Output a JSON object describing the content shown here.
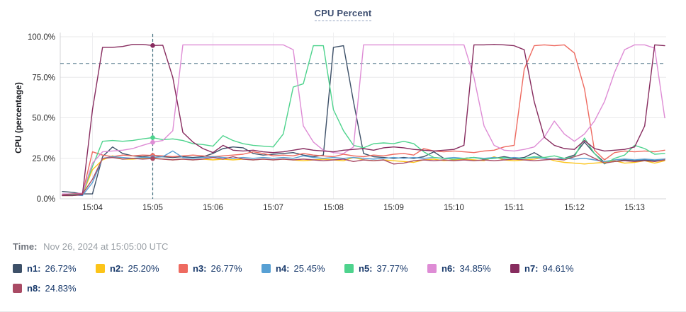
{
  "chart_data": {
    "type": "line",
    "title": "CPU Percent",
    "xlabel": "",
    "ylabel": "CPU (percentage)",
    "ylim": [
      0,
      100
    ],
    "grid": true,
    "legend_position": "bottom",
    "y_ticks": [
      "100.0%",
      "75.0%",
      "50.0%",
      "25.0%",
      "0.0%"
    ],
    "y_tick_values": [
      100,
      75,
      50,
      25,
      0
    ],
    "x_ticks": [
      "15:04",
      "15:05",
      "15:06",
      "15:07",
      "15:08",
      "15:09",
      "15:10",
      "15:11",
      "15:12",
      "15:13"
    ],
    "x_start": "15:03:30",
    "x_end": "15:13:30",
    "interval_seconds": 10,
    "threshold_pct": 83.5,
    "crosshair": {
      "index": 9,
      "time": "15:05:00"
    },
    "colors": {
      "threshold": "#54788c",
      "crosshair": "#3f6d7d",
      "grid": "#e8e8ea",
      "axis": "#d4d4d7",
      "tick_text": "#2d2d2d"
    },
    "series": [
      {
        "name": "n1",
        "color": "#3d5068",
        "legend_value": "26.72%",
        "values": [
          4.5,
          4,
          3,
          3,
          26,
          32,
          28,
          26.5,
          26,
          26.72,
          26,
          25.5,
          26,
          25.5,
          26,
          28,
          31,
          32,
          31.5,
          28,
          27,
          27.5,
          28,
          28.5,
          27,
          26,
          27,
          93.5,
          94.5,
          60,
          28,
          26,
          25.5,
          25,
          25.5,
          25,
          26,
          29,
          25,
          24.5,
          25,
          25.5,
          24.5,
          25,
          26,
          25,
          25.5,
          28.5,
          25,
          24.5,
          25,
          27,
          35,
          28,
          22.5,
          23,
          24,
          23.5,
          24,
          23.5,
          24.5
        ]
      },
      {
        "name": "n2",
        "color": "#fcc419",
        "legend_value": "25.20%",
        "values": [
          2,
          2,
          2.5,
          18,
          24,
          26.5,
          24.5,
          24.5,
          25,
          25.2,
          24.5,
          24,
          24.5,
          24,
          24.5,
          24,
          24.5,
          24,
          24.5,
          24,
          24.5,
          24,
          24.5,
          24,
          23.5,
          24,
          24.5,
          24,
          23.5,
          25.5,
          24,
          23.5,
          24,
          23.5,
          23,
          22.5,
          24,
          24.5,
          23.5,
          24,
          24.5,
          24,
          23.5,
          26,
          24,
          23.5,
          24,
          24.5,
          25.5,
          23.5,
          22.5,
          22,
          21.5,
          22,
          22.5,
          23.5,
          22,
          22.5,
          23.5,
          22,
          23.5
        ]
      },
      {
        "name": "n3",
        "color": "#ee6a60",
        "legend_value": "26.77%",
        "values": [
          2.5,
          2.5,
          3,
          29,
          27,
          26,
          27,
          26.5,
          27,
          26.77,
          26.5,
          26,
          26.5,
          27,
          26.5,
          26,
          26.5,
          27,
          27.5,
          29,
          28,
          26.5,
          27,
          26.5,
          28,
          27,
          26.5,
          26,
          27.5,
          26.5,
          26,
          27,
          26.5,
          27.5,
          28,
          27,
          31,
          29.5,
          29,
          29.5,
          29,
          28.5,
          29.5,
          30,
          32,
          33,
          80,
          94.5,
          95,
          94.5,
          95,
          90,
          68,
          30,
          24,
          28.5,
          29.5,
          29,
          29.5,
          29,
          30
        ]
      },
      {
        "name": "n4",
        "color": "#57a0d4",
        "legend_value": "25.45%",
        "values": [
          2,
          2.5,
          2,
          10,
          25,
          26,
          25.5,
          25,
          25.5,
          25.45,
          26,
          29.5,
          25.5,
          25,
          25.5,
          26,
          25.5,
          25,
          25.5,
          25,
          25.5,
          25,
          25.5,
          25,
          26.5,
          25.5,
          25,
          25.5,
          25,
          25.5,
          25,
          24.5,
          25,
          25.5,
          25,
          25.5,
          25,
          25.5,
          25,
          25.5,
          25,
          25.5,
          25,
          25.5,
          25,
          25.5,
          25,
          25.5,
          25,
          24.5,
          25,
          24.5,
          25,
          24,
          23,
          24,
          24.5,
          24,
          24.5,
          24,
          24.5
        ]
      },
      {
        "name": "n5",
        "color": "#4ed38d",
        "legend_value": "37.77%",
        "values": [
          2,
          2.5,
          3,
          20,
          35.5,
          36,
          35.5,
          36,
          37,
          37.77,
          36.5,
          37,
          36,
          34,
          33.5,
          32.5,
          39,
          36,
          34,
          33,
          32.5,
          32,
          40,
          69,
          71,
          94.5,
          94.5,
          55,
          42,
          33,
          31.5,
          34,
          34.5,
          34,
          35.5,
          34,
          29,
          25.5,
          25,
          24.5,
          25,
          25.5,
          24.5,
          25,
          25.5,
          24.5,
          25,
          26,
          25.5,
          26.5,
          25,
          26,
          37.5,
          28,
          21.5,
          25,
          27,
          33,
          31,
          27.5,
          28
        ]
      },
      {
        "name": "n6",
        "color": "#de8cd5",
        "legend_value": "34.85%",
        "values": [
          3,
          3,
          3.5,
          22,
          29,
          29.5,
          30,
          31,
          33,
          34.85,
          36,
          42,
          95,
          95,
          95,
          95,
          95,
          95,
          95,
          95,
          95,
          95,
          95,
          92,
          45,
          35,
          30,
          28.5,
          28,
          32,
          95,
          95,
          95,
          95,
          95,
          95,
          95,
          95,
          95,
          95,
          95,
          75,
          45,
          33,
          30,
          29.5,
          30.5,
          32,
          38,
          48,
          40,
          35.5,
          40,
          48,
          60,
          78,
          92,
          95,
          95,
          93,
          50
        ]
      },
      {
        "name": "n7",
        "color": "#872c5f",
        "legend_value": "94.61%",
        "values": [
          2,
          2,
          2.5,
          55,
          93.5,
          93.5,
          94,
          95.3,
          95.3,
          94.61,
          94.8,
          75,
          41,
          35,
          31,
          28.5,
          33,
          30,
          29.5,
          30,
          29,
          28.5,
          29,
          30,
          31,
          30,
          29.5,
          29,
          30,
          30.5,
          31,
          30,
          31.5,
          32,
          31.5,
          30.5,
          30,
          29.5,
          30,
          30.5,
          33,
          95,
          95,
          95.3,
          95,
          94.5,
          92,
          60,
          38,
          33,
          31,
          30.5,
          36,
          31,
          29.5,
          30,
          30.5,
          32,
          45,
          95,
          94.5
        ]
      },
      {
        "name": "n8",
        "color": "#a94a64",
        "legend_value": "24.83%",
        "values": [
          2.5,
          3,
          3,
          12,
          25,
          25.5,
          24.5,
          25,
          24.5,
          24.83,
          24.5,
          24,
          24.5,
          24,
          24.5,
          25.5,
          24.5,
          26,
          24.5,
          24,
          24.5,
          24,
          24.5,
          24,
          24.5,
          24,
          23.5,
          24,
          24.5,
          23,
          24,
          23.5,
          24,
          21.5,
          22,
          23.5,
          24,
          23.5,
          24,
          23.5,
          24,
          23.5,
          24,
          23.5,
          24,
          24.5,
          24,
          23.5,
          24,
          24.5,
          24,
          26,
          28,
          25,
          22,
          23,
          23.5,
          23,
          23.5,
          23,
          24
        ]
      }
    ]
  },
  "footer": {
    "time_label": "Time:",
    "time_value": "Nov 26, 2024 at 15:05:00 UTC"
  }
}
